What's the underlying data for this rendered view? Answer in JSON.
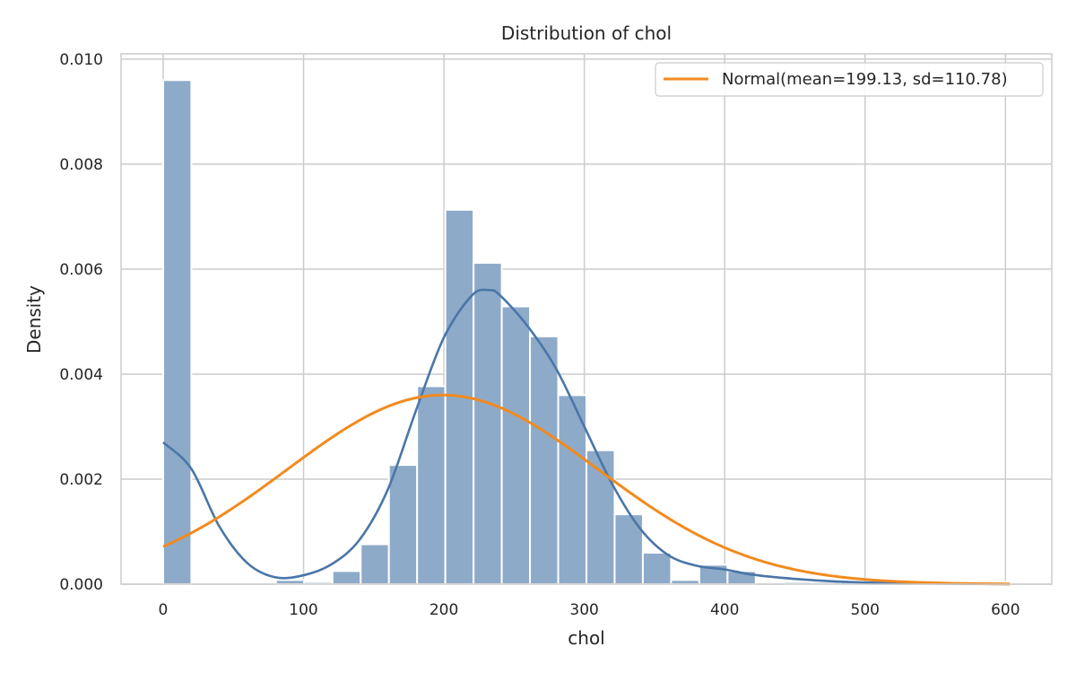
{
  "chart_data": {
    "type": "bar",
    "title": "Distribution of chol",
    "xlabel": "chol",
    "ylabel": "Density",
    "xlim": [
      -30,
      633
    ],
    "ylim": [
      0,
      0.0101
    ],
    "x_ticks": [
      0,
      100,
      200,
      300,
      400,
      500,
      600
    ],
    "y_ticks": [
      0.0,
      0.002,
      0.004,
      0.006,
      0.008,
      0.01
    ],
    "y_tick_labels": [
      "0.000",
      "0.002",
      "0.004",
      "0.006",
      "0.008",
      "0.010"
    ],
    "grid": true,
    "legend_position": "top-right",
    "histogram": {
      "bin_edges": [
        0,
        20.1,
        40.2,
        60.3,
        80.4,
        100.5,
        120.6,
        140.7,
        160.8,
        180.9,
        201.0,
        221.1,
        241.2,
        261.3,
        281.4,
        301.5,
        321.6,
        341.7,
        361.8,
        381.9,
        402.0,
        422.1,
        442.2,
        462.3,
        482.4,
        502.5,
        522.6,
        542.7,
        562.8,
        582.9,
        603.0
      ],
      "density": [
        0.0096,
        0,
        0,
        0,
        8e-05,
        4e-05,
        0.00025,
        0.00076,
        0.00227,
        0.00377,
        0.00713,
        0.00612,
        0.00529,
        0.00472,
        0.0036,
        0.00255,
        0.00133,
        0.0006,
        8e-05,
        0.00037,
        0.00025,
        0,
        4e-05,
        4e-05,
        4e-05,
        0,
        0,
        0,
        0,
        4e-05
      ],
      "color": "#8eaac9"
    },
    "kde": {
      "x": [
        0,
        20,
        40,
        60,
        80,
        100,
        120,
        140,
        160,
        180,
        200,
        220,
        232,
        240,
        260,
        280,
        300,
        320,
        340,
        360,
        380,
        400,
        420,
        450,
        480,
        520,
        560,
        603
      ],
      "y": [
        0.0027,
        0.0022,
        0.0011,
        0.0004,
        0.00013,
        0.00017,
        0.00038,
        0.00085,
        0.0018,
        0.0033,
        0.0047,
        0.0055,
        0.0056,
        0.0055,
        0.0049,
        0.0041,
        0.003,
        0.0019,
        0.00105,
        0.00055,
        0.00035,
        0.00028,
        0.00018,
        0.0001,
        5e-05,
        2e-05,
        1e-05,
        0
      ],
      "color": "#4a76a8"
    },
    "series": [
      {
        "name": "Normal(mean=199.13, sd=110.78)",
        "distribution": "normal",
        "mean": 199.13,
        "sd": 110.78,
        "x_range": [
          0,
          603
        ],
        "color": "#f28a1e"
      }
    ]
  }
}
